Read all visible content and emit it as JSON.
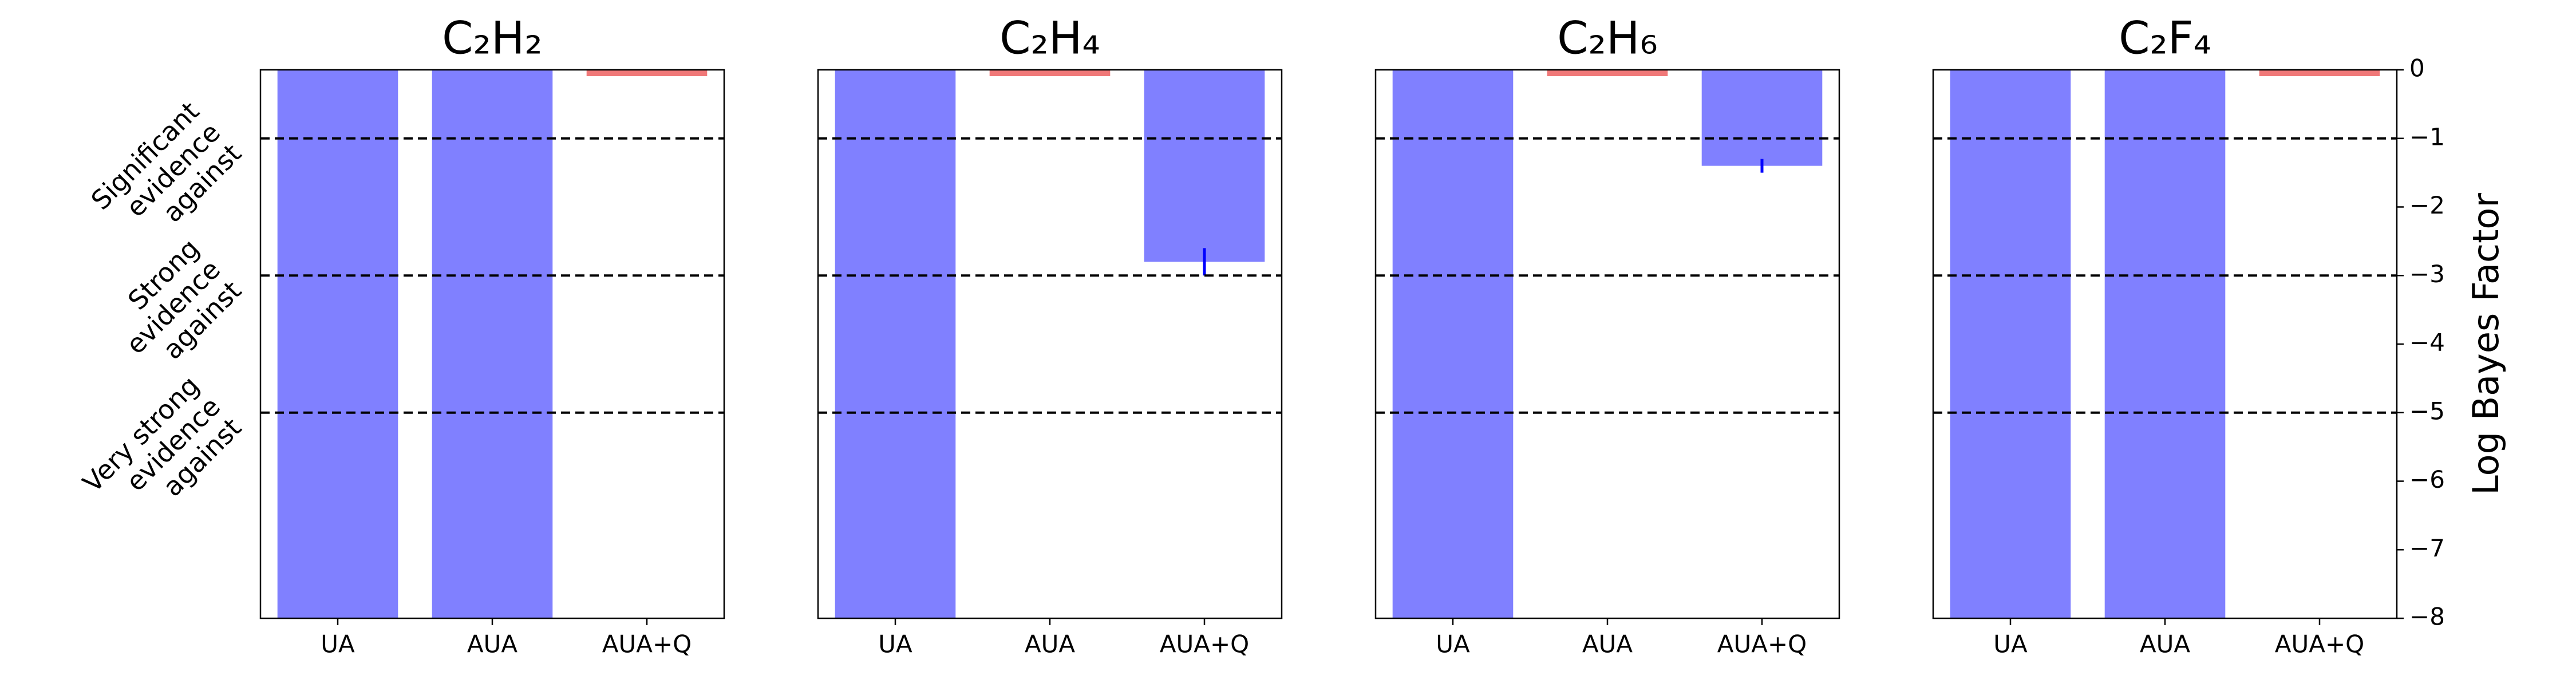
{
  "chart_data": [
    {
      "type": "bar",
      "title": "C₂H₂",
      "categories": [
        "UA",
        "AUA",
        "AUA+Q"
      ],
      "values": [
        -8,
        -8,
        0
      ],
      "errors": [
        null,
        null,
        null
      ],
      "color": "#8080ff",
      "zero_color": "#f07878",
      "error_color": "#0000ff",
      "ylim": [
        -8,
        0
      ],
      "hlines": [
        -1,
        -3,
        -5
      ],
      "hline_labels": [
        [
          "Significant",
          "evidence",
          "against"
        ],
        [
          "Strong",
          "evidence",
          "against"
        ],
        [
          "Very strong",
          "evidence",
          "against"
        ]
      ]
    },
    {
      "type": "bar",
      "title": "C₂H₄",
      "categories": [
        "UA",
        "AUA",
        "AUA+Q"
      ],
      "values": [
        -8,
        0,
        -2.8
      ],
      "errors": [
        null,
        null,
        0.2
      ],
      "color": "#8080ff",
      "zero_color": "#f07878",
      "error_color": "#0000ff",
      "ylim": [
        -8,
        0
      ],
      "hlines": [
        -1,
        -3,
        -5
      ]
    },
    {
      "type": "bar",
      "title": "C₂H₆",
      "categories": [
        "UA",
        "AUA",
        "AUA+Q"
      ],
      "values": [
        -8,
        0,
        -1.4
      ],
      "errors": [
        null,
        null,
        0.1
      ],
      "color": "#8080ff",
      "zero_color": "#f07878",
      "error_color": "#0000ff",
      "ylim": [
        -8,
        0
      ],
      "hlines": [
        -1,
        -3,
        -5
      ]
    },
    {
      "type": "bar",
      "title": "C₂F₄",
      "categories": [
        "UA",
        "AUA",
        "AUA+Q"
      ],
      "values": [
        -8,
        -8,
        0
      ],
      "errors": [
        null,
        null,
        null
      ],
      "color": "#8080ff",
      "zero_color": "#f07878",
      "error_color": "#0000ff",
      "ylim": [
        -8,
        0
      ],
      "hlines": [
        -1,
        -3,
        -5
      ],
      "ylabel": "Log Bayes Factor",
      "yticks": [
        0,
        {
          "value": -1,
          "label": "−1"
        },
        {
          "value": -2,
          "label": "−2"
        },
        {
          "value": -3,
          "label": "−3"
        },
        {
          "value": -4,
          "label": "−4"
        },
        {
          "value": -5,
          "label": "−5"
        },
        {
          "value": -6,
          "label": "−6"
        },
        {
          "value": -7,
          "label": "−7"
        },
        {
          "value": -8,
          "label": "−8"
        }
      ]
    }
  ]
}
